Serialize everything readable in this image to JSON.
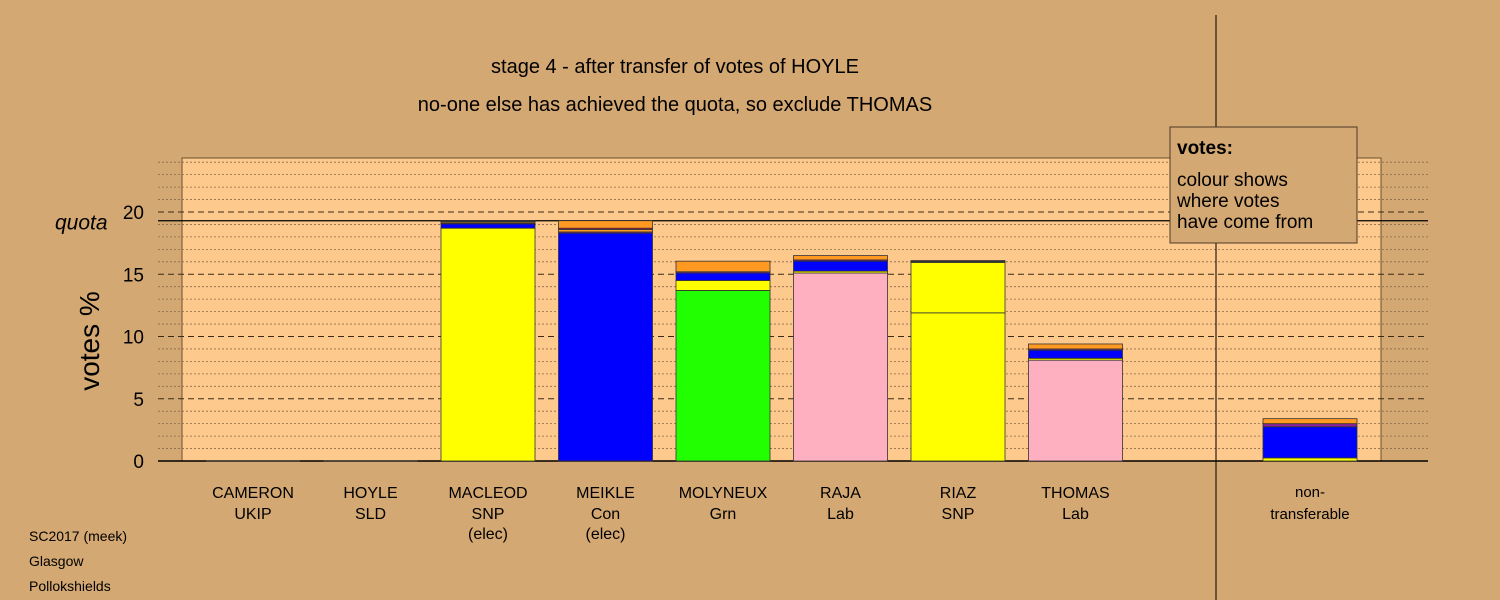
{
  "chart_data": {
    "type": "bar",
    "stacked": true,
    "title": "stage 4 - after transfer of votes of HOYLE",
    "subtitle": "no-one else has achieved the quota, so exclude THOMAS",
    "ylabel": "votes %",
    "ylim": [
      0,
      24.5
    ],
    "yticks": [
      0,
      5,
      10,
      15,
      20
    ],
    "quota": 19.3,
    "quota_label": "quota",
    "legend": {
      "heading": "votes:",
      "lines": [
        "colour shows",
        "where votes",
        "have come from"
      ],
      "placement": "top-right"
    },
    "colors": {
      "SNP": "#FFFF00",
      "Con": "#0000FF",
      "Grn": "#22FF00",
      "Lab": "#FFB0C0",
      "SLD": "#FF9922",
      "UKIP": "#882299",
      "Ind": "#DD1144",
      "dark": "#333333",
      "background": "#D4A872",
      "plot": "#FDC98C"
    },
    "candidates": [
      {
        "name": "CAMERON",
        "party": "UKIP",
        "note": "",
        "segments": []
      },
      {
        "name": "HOYLE",
        "party": "SLD",
        "note": "",
        "segments": []
      },
      {
        "name": "MACLEOD",
        "party": "SNP",
        "note": "(elec)",
        "segments": [
          {
            "from": "SNP",
            "value": 18.7
          },
          {
            "from": "Con",
            "value": 0.35
          },
          {
            "from": "UKIP",
            "value": 0.05
          },
          {
            "from": "SLD",
            "value": 0.1
          },
          {
            "from": "dark",
            "value": 0.1
          }
        ]
      },
      {
        "name": "MEIKLE",
        "party": "Con",
        "note": "(elec)",
        "segments": [
          {
            "from": "Con",
            "value": 18.3
          },
          {
            "from": "UKIP",
            "value": 0.1
          },
          {
            "from": "SLD",
            "value": 0.2
          },
          {
            "from": "Ind",
            "value": 0.1
          },
          {
            "from": "SLD",
            "value": 0.6
          }
        ]
      },
      {
        "name": "MOLYNEUX",
        "party": "Grn",
        "note": "",
        "segments": [
          {
            "from": "Grn",
            "value": 13.7
          },
          {
            "from": "SNP",
            "value": 0.8
          },
          {
            "from": "Con",
            "value": 0.6
          },
          {
            "from": "UKIP",
            "value": 0.1
          },
          {
            "from": "SLD",
            "value": 0.85
          }
        ]
      },
      {
        "name": "RAJA",
        "party": "Lab",
        "note": "",
        "segments": [
          {
            "from": "Lab",
            "value": 15.1
          },
          {
            "from": "SNP",
            "value": 0.15
          },
          {
            "from": "Con",
            "value": 0.8
          },
          {
            "from": "UKIP",
            "value": 0.1
          },
          {
            "from": "SLD",
            "value": 0.35
          }
        ]
      },
      {
        "name": "RIAZ",
        "party": "SNP",
        "note": "",
        "segments": [
          {
            "from": "SNP",
            "value": 11.9
          },
          {
            "from": "SNP",
            "value": 4.05
          },
          {
            "from": "dark",
            "value": 0.15
          }
        ]
      },
      {
        "name": "THOMAS",
        "party": "Lab",
        "note": "",
        "segments": [
          {
            "from": "Lab",
            "value": 8.1
          },
          {
            "from": "SNP",
            "value": 0.15
          },
          {
            "from": "Con",
            "value": 0.65
          },
          {
            "from": "UKIP",
            "value": 0.1
          },
          {
            "from": "SLD",
            "value": 0.4
          }
        ]
      }
    ],
    "non_transferable": {
      "label_line1": "non-",
      "label_line2": "transferable",
      "segments": [
        {
          "from": "SNP",
          "value": 0.25
        },
        {
          "from": "Con",
          "value": 2.5
        },
        {
          "from": "UKIP",
          "value": 0.25
        },
        {
          "from": "SLD",
          "value": 0.4
        }
      ]
    }
  },
  "footer": {
    "line1": "SC2017 (meek)",
    "line2": "Glasgow",
    "line3": "Pollokshields"
  }
}
